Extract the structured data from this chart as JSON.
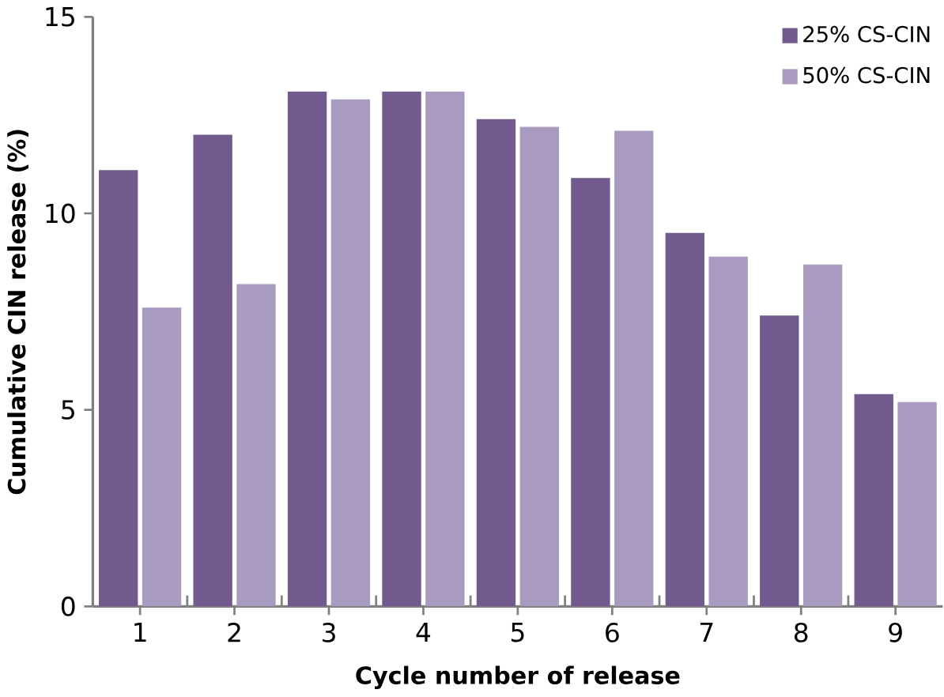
{
  "chart_data": {
    "type": "bar",
    "xlabel": "Cycle number of release",
    "ylabel": "Cumulative CIN release (%)",
    "categories": [
      "1",
      "2",
      "3",
      "4",
      "5",
      "6",
      "7",
      "8",
      "9"
    ],
    "series": [
      {
        "name": "25% CS-CIN",
        "color": "#725a8f",
        "values": [
          11.1,
          12.0,
          13.1,
          13.1,
          12.4,
          10.9,
          9.5,
          7.4,
          5.4
        ]
      },
      {
        "name": "50% CS-CIN",
        "color": "#a99bbf",
        "values": [
          7.6,
          8.2,
          12.9,
          13.1,
          12.2,
          12.1,
          8.9,
          8.7,
          5.2
        ]
      }
    ],
    "ylim": [
      0,
      15
    ],
    "yticks": [
      0,
      5,
      10,
      15
    ],
    "grid": false,
    "legend": "top right"
  }
}
